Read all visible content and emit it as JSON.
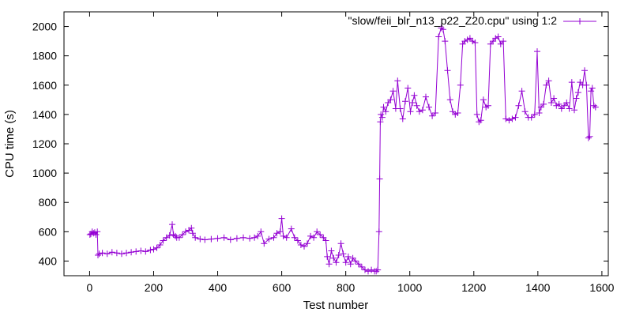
{
  "chart_data": {
    "type": "line",
    "title": "",
    "xlabel": "Test number",
    "ylabel": "CPU time (s)",
    "xlim": [
      -80,
      1620
    ],
    "ylim": [
      300,
      2100
    ],
    "xticks": [
      0,
      200,
      400,
      600,
      800,
      1000,
      1200,
      1400,
      1600
    ],
    "yticks": [
      400,
      600,
      800,
      1000,
      1200,
      1400,
      1600,
      1800,
      2000
    ],
    "grid": false,
    "legend_position": "top-right",
    "series": [
      {
        "name": "\"slow/feii_blr_n13_p22_Z20.cpu\" using 1:2",
        "color": "#9400d3",
        "marker": "plus",
        "x": [
          1,
          4,
          8,
          12,
          16,
          20,
          24,
          26,
          30,
          40,
          55,
          70,
          85,
          100,
          115,
          130,
          145,
          160,
          175,
          190,
          200,
          210,
          220,
          230,
          240,
          250,
          258,
          262,
          268,
          272,
          280,
          290,
          300,
          310,
          318,
          322,
          330,
          345,
          360,
          380,
          400,
          420,
          440,
          460,
          480,
          500,
          515,
          525,
          535,
          545,
          560,
          575,
          585,
          595,
          600,
          605,
          615,
          630,
          640,
          650,
          660,
          670,
          680,
          690,
          700,
          710,
          720,
          730,
          738,
          742,
          748,
          755,
          762,
          770,
          778,
          785,
          792,
          800,
          808,
          815,
          822,
          830,
          840,
          850,
          860,
          870,
          880,
          890,
          895,
          900,
          904,
          906,
          908,
          910,
          914,
          918,
          925,
          932,
          940,
          948,
          956,
          962,
          970,
          978,
          986,
          994,
          1002,
          1008,
          1014,
          1022,
          1030,
          1040,
          1050,
          1060,
          1070,
          1080,
          1090,
          1098,
          1104,
          1110,
          1118,
          1126,
          1134,
          1142,
          1150,
          1158,
          1165,
          1172,
          1180,
          1188,
          1196,
          1204,
          1210,
          1216,
          1222,
          1230,
          1238,
          1245,
          1252,
          1260,
          1268,
          1276,
          1284,
          1292,
          1300,
          1310,
          1320,
          1330,
          1340,
          1350,
          1360,
          1370,
          1380,
          1390,
          1398,
          1404,
          1410,
          1418,
          1426,
          1434,
          1442,
          1450,
          1458,
          1466,
          1474,
          1482,
          1490,
          1498,
          1506,
          1514,
          1520,
          1526,
          1532,
          1540,
          1546,
          1552,
          1558,
          1562,
          1566,
          1570,
          1575,
          1580
        ],
        "values": [
          580,
          585,
          600,
          590,
          595,
          580,
          600,
          440,
          450,
          455,
          450,
          460,
          455,
          450,
          455,
          460,
          465,
          470,
          465,
          475,
          480,
          490,
          510,
          540,
          560,
          575,
          650,
          580,
          570,
          560,
          560,
          580,
          600,
          610,
          625,
          590,
          560,
          550,
          545,
          550,
          555,
          560,
          545,
          555,
          560,
          555,
          560,
          570,
          600,
          520,
          550,
          560,
          590,
          600,
          690,
          570,
          560,
          620,
          560,
          540,
          510,
          500,
          520,
          570,
          560,
          600,
          580,
          560,
          540,
          430,
          380,
          470,
          420,
          390,
          440,
          520,
          450,
          390,
          430,
          380,
          420,
          400,
          380,
          360,
          340,
          330,
          340,
          330,
          330,
          340,
          600,
          960,
          1350,
          1400,
          1380,
          1450,
          1420,
          1480,
          1500,
          1560,
          1440,
          1630,
          1440,
          1370,
          1490,
          1580,
          1420,
          1480,
          1530,
          1460,
          1420,
          1430,
          1520,
          1450,
          1390,
          1410,
          1930,
          1990,
          1980,
          1900,
          1700,
          1500,
          1420,
          1400,
          1410,
          1600,
          1880,
          1900,
          1910,
          1920,
          1900,
          1890,
          1400,
          1350,
          1360,
          1500,
          1450,
          1460,
          1880,
          1900,
          1920,
          1930,
          1880,
          1900,
          1370,
          1360,
          1370,
          1380,
          1460,
          1560,
          1420,
          1380,
          1380,
          1400,
          1830,
          1410,
          1450,
          1470,
          1600,
          1630,
          1480,
          1510,
          1460,
          1470,
          1440,
          1460,
          1480,
          1440,
          1620,
          1430,
          1510,
          1550,
          1620,
          1600,
          1700,
          1600,
          1240,
          1250,
          1560,
          1580,
          1460,
          1450
        ]
      }
    ]
  }
}
